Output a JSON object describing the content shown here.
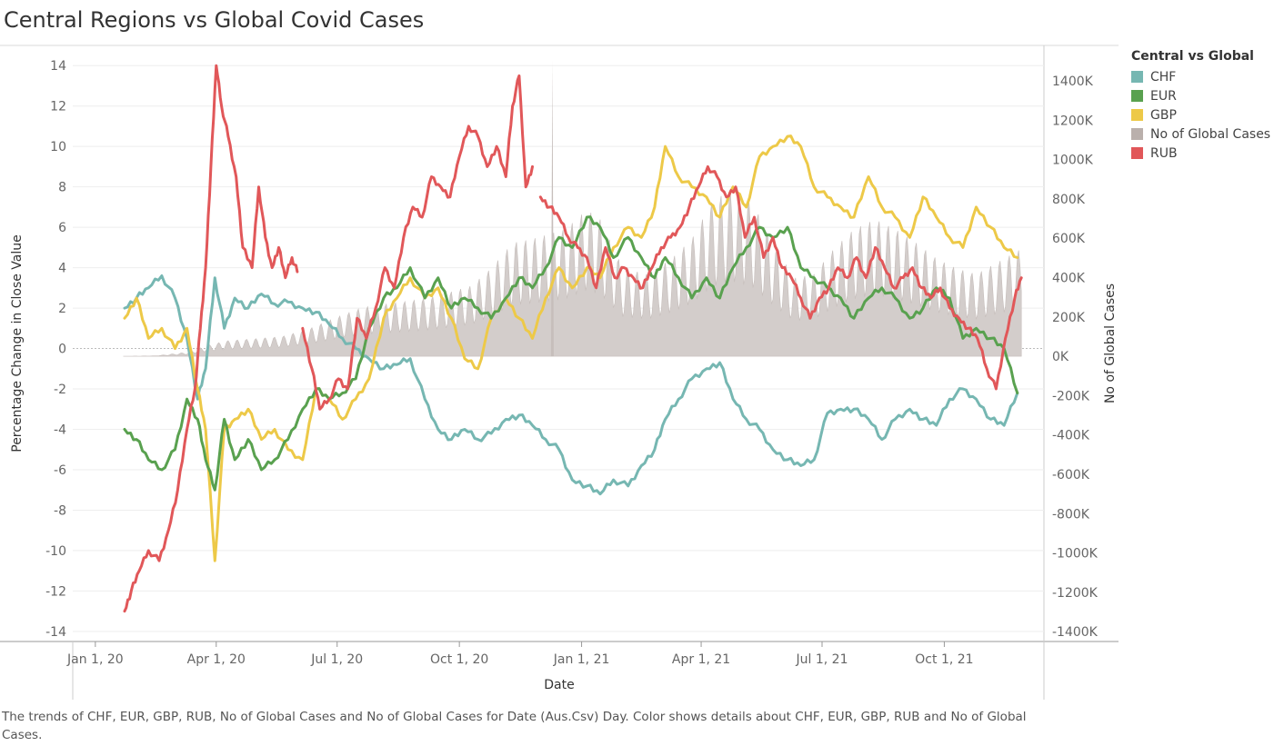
{
  "title": "Central Regions vs Global Covid Cases",
  "legend": {
    "title": "Central vs Global",
    "items": [
      {
        "label": "CHF",
        "color": "#76B7B2"
      },
      {
        "label": "EUR",
        "color": "#59A14F"
      },
      {
        "label": "GBP",
        "color": "#EDC948"
      },
      {
        "label": "No of Global Cases",
        "color": "#BAB0AC"
      },
      {
        "label": "RUB",
        "color": "#E15759"
      }
    ]
  },
  "caption": "The trends of CHF, EUR, GBP, RUB, No of Global Cases and No of Global Cases for Date (Aus.Csv) Day.  Color shows details about CHF, EUR, GBP, RUB and No of Global Cases.",
  "chart_data": {
    "type": "line",
    "xlabel": "Date",
    "ylabel": "Percentage Change in Close Value",
    "y2label": "No of Global Cases",
    "ylim": [
      -14.5,
      15
    ],
    "y2lim": [
      -1450000,
      1580000
    ],
    "yticks": [
      "14",
      "12",
      "10",
      "8",
      "6",
      "4",
      "2",
      "0",
      "-2",
      "-4",
      "-6",
      "-8",
      "-10",
      "-12",
      "-14"
    ],
    "y2ticks": [
      "1400K",
      "1200K",
      "1000K",
      "800K",
      "600K",
      "400K",
      "200K",
      "0K",
      "-200K",
      "-400K",
      "-600K",
      "-800K",
      "-1000K",
      "-1200K",
      "-1400K"
    ],
    "xticks": [
      "Jan 1, 20",
      "Apr 1, 20",
      "Jul 1, 20",
      "Oct 1, 20",
      "Jan 1, 21",
      "Apr 1, 21",
      "Jul 1, 21",
      "Oct 1, 21"
    ],
    "xlim": [
      "2019-12-15",
      "2021-12-15"
    ],
    "grid": true,
    "legend_position": "right",
    "series": [
      {
        "name": "CHF",
        "color": "#76B7B2",
        "dates": [
          "2020-01-23",
          "2020-02-01",
          "2020-02-10",
          "2020-02-20",
          "2020-03-01",
          "2020-03-10",
          "2020-03-18",
          "2020-03-24",
          "2020-03-31",
          "2020-04-07",
          "2020-04-15",
          "2020-04-25",
          "2020-05-05",
          "2020-05-15",
          "2020-05-25",
          "2020-06-05",
          "2020-06-15",
          "2020-06-25",
          "2020-07-05",
          "2020-07-15",
          "2020-07-25",
          "2020-08-05",
          "2020-08-15",
          "2020-08-25",
          "2020-09-05",
          "2020-09-15",
          "2020-09-25",
          "2020-10-05",
          "2020-10-15",
          "2020-10-25",
          "2020-11-05",
          "2020-11-15",
          "2020-11-25",
          "2020-12-05",
          "2020-12-15",
          "2020-12-25",
          "2021-01-05",
          "2021-01-15",
          "2021-01-25",
          "2021-02-05",
          "2021-02-15",
          "2021-02-25",
          "2021-03-05",
          "2021-03-15",
          "2021-03-25",
          "2021-04-05",
          "2021-04-15",
          "2021-04-25",
          "2021-05-05",
          "2021-05-15",
          "2021-05-25",
          "2021-06-05",
          "2021-06-15",
          "2021-06-25",
          "2021-07-05",
          "2021-07-15",
          "2021-07-25",
          "2021-08-05",
          "2021-08-15",
          "2021-08-25",
          "2021-09-05",
          "2021-09-15",
          "2021-09-25",
          "2021-10-05",
          "2021-10-15",
          "2021-10-25",
          "2021-11-05",
          "2021-11-15",
          "2021-11-25"
        ],
        "values": [
          2.0,
          2.5,
          3.0,
          3.6,
          2.5,
          0.5,
          -2.5,
          -1.0,
          3.5,
          1.0,
          2.5,
          2.0,
          2.7,
          2.2,
          2.3,
          2.0,
          1.8,
          1.2,
          0.5,
          0.0,
          -0.5,
          -1.0,
          -0.8,
          -0.5,
          -2.5,
          -4.0,
          -4.5,
          -4.0,
          -4.5,
          -4.2,
          -3.5,
          -3.3,
          -3.8,
          -4.5,
          -5.0,
          -6.5,
          -6.8,
          -7.2,
          -6.5,
          -6.8,
          -5.8,
          -5.0,
          -3.5,
          -2.5,
          -1.5,
          -1.0,
          -0.7,
          -2.5,
          -3.5,
          -4.0,
          -5.0,
          -5.5,
          -5.8,
          -5.5,
          -3.2,
          -3.0,
          -3.0,
          -3.5,
          -4.5,
          -3.5,
          -3.0,
          -3.5,
          -3.8,
          -2.5,
          -2.0,
          -2.5,
          -3.5,
          -3.8,
          -2.2
        ]
      },
      {
        "name": "EUR",
        "color": "#59A14F",
        "dates": [
          "2020-01-23",
          "2020-02-01",
          "2020-02-10",
          "2020-02-20",
          "2020-03-01",
          "2020-03-10",
          "2020-03-18",
          "2020-03-24",
          "2020-03-31",
          "2020-04-07",
          "2020-04-15",
          "2020-04-25",
          "2020-05-05",
          "2020-05-15",
          "2020-05-25",
          "2020-06-05",
          "2020-06-15",
          "2020-06-25",
          "2020-07-05",
          "2020-07-15",
          "2020-07-25",
          "2020-08-05",
          "2020-08-15",
          "2020-08-25",
          "2020-09-05",
          "2020-09-15",
          "2020-09-25",
          "2020-10-05",
          "2020-10-15",
          "2020-10-25",
          "2020-11-05",
          "2020-11-15",
          "2020-11-25",
          "2020-12-05",
          "2020-12-15",
          "2020-12-25",
          "2021-01-05",
          "2021-01-15",
          "2021-01-25",
          "2021-02-05",
          "2021-02-15",
          "2021-02-25",
          "2021-03-05",
          "2021-03-15",
          "2021-03-25",
          "2021-04-05",
          "2021-04-15",
          "2021-04-25",
          "2021-05-05",
          "2021-05-15",
          "2021-05-25",
          "2021-06-05",
          "2021-06-15",
          "2021-06-25",
          "2021-07-05",
          "2021-07-15",
          "2021-07-25",
          "2021-08-05",
          "2021-08-15",
          "2021-08-25",
          "2021-09-05",
          "2021-09-15",
          "2021-09-25",
          "2021-10-05",
          "2021-10-15",
          "2021-10-25",
          "2021-11-05",
          "2021-11-15",
          "2021-11-25"
        ],
        "values": [
          -4.0,
          -4.5,
          -5.5,
          -6.0,
          -5.0,
          -2.5,
          -3.5,
          -5.5,
          -7.0,
          -3.5,
          -5.5,
          -4.5,
          -6.0,
          -5.5,
          -4.5,
          -3.0,
          -2.0,
          -2.5,
          -2.2,
          -1.5,
          1.0,
          2.5,
          3.0,
          4.0,
          2.5,
          3.5,
          2.0,
          2.5,
          2.0,
          1.5,
          2.5,
          3.5,
          3.0,
          4.0,
          5.5,
          5.0,
          6.5,
          6.0,
          4.5,
          5.5,
          4.5,
          3.5,
          4.5,
          3.5,
          2.5,
          3.5,
          2.5,
          4.0,
          5.0,
          6.0,
          5.5,
          6.0,
          4.0,
          3.5,
          3.0,
          2.5,
          1.5,
          2.5,
          3.0,
          2.5,
          1.5,
          2.0,
          3.0,
          2.5,
          0.5,
          1.0,
          0.5,
          0.0,
          -2.2
        ]
      },
      {
        "name": "GBP",
        "color": "#EDC948",
        "dates": [
          "2020-01-23",
          "2020-02-01",
          "2020-02-10",
          "2020-02-20",
          "2020-03-01",
          "2020-03-10",
          "2020-03-18",
          "2020-03-24",
          "2020-03-31",
          "2020-04-07",
          "2020-04-15",
          "2020-04-25",
          "2020-05-05",
          "2020-05-15",
          "2020-05-25",
          "2020-06-05",
          "2020-06-15",
          "2020-06-25",
          "2020-07-05",
          "2020-07-15",
          "2020-07-25",
          "2020-08-05",
          "2020-08-15",
          "2020-08-25",
          "2020-09-05",
          "2020-09-15",
          "2020-09-25",
          "2020-10-05",
          "2020-10-15",
          "2020-10-25",
          "2020-11-05",
          "2020-11-15",
          "2020-11-25",
          "2020-12-05",
          "2020-12-15",
          "2020-12-25",
          "2021-01-05",
          "2021-01-15",
          "2021-01-25",
          "2021-02-05",
          "2021-02-15",
          "2021-02-25",
          "2021-03-05",
          "2021-03-15",
          "2021-03-25",
          "2021-04-05",
          "2021-04-15",
          "2021-04-25",
          "2021-05-05",
          "2021-05-15",
          "2021-05-25",
          "2021-06-05",
          "2021-06-15",
          "2021-06-25",
          "2021-07-05",
          "2021-07-15",
          "2021-07-25",
          "2021-08-05",
          "2021-08-15",
          "2021-08-25",
          "2021-09-05",
          "2021-09-15",
          "2021-09-25",
          "2021-10-05",
          "2021-10-15",
          "2021-10-25",
          "2021-11-05",
          "2021-11-15",
          "2021-11-25"
        ],
        "values": [
          1.5,
          2.5,
          0.5,
          1.0,
          0.0,
          1.0,
          -2.0,
          -4.0,
          -10.5,
          -4.0,
          -3.5,
          -3.0,
          -4.5,
          -4.0,
          -5.0,
          -5.5,
          -2.0,
          -2.5,
          -3.5,
          -2.5,
          -1.5,
          1.5,
          2.5,
          3.5,
          2.5,
          3.0,
          1.5,
          -0.5,
          -1.0,
          1.5,
          2.5,
          1.5,
          0.5,
          2.5,
          4.0,
          3.0,
          4.0,
          3.5,
          5.0,
          6.0,
          5.5,
          7.0,
          10.0,
          8.5,
          8.0,
          7.5,
          6.5,
          8.0,
          7.0,
          9.5,
          10.0,
          10.5,
          10.0,
          8.0,
          7.5,
          7.0,
          6.5,
          8.5,
          7.0,
          6.5,
          5.5,
          7.5,
          6.5,
          5.5,
          5.0,
          7.0,
          6.0,
          5.0,
          4.5
        ]
      },
      {
        "name": "RUB",
        "color": "#E15759",
        "segments": [
          {
            "dates": [
              "2020-01-23",
              "2020-01-28",
              "2020-02-03",
              "2020-02-10",
              "2020-02-18",
              "2020-02-25",
              "2020-03-03",
              "2020-03-10",
              "2020-03-16",
              "2020-03-20",
              "2020-03-24",
              "2020-03-28",
              "2020-04-01",
              "2020-04-05",
              "2020-04-10",
              "2020-04-16",
              "2020-04-21",
              "2020-04-28",
              "2020-05-03",
              "2020-05-08",
              "2020-05-13",
              "2020-05-18",
              "2020-05-23",
              "2020-05-28",
              "2020-06-01"
            ],
            "values": [
              -13.0,
              -12.0,
              -11.0,
              -10.0,
              -10.5,
              -9.0,
              -7.0,
              -4.0,
              -2.0,
              1.0,
              4.0,
              9.0,
              14.0,
              12.0,
              10.5,
              8.5,
              5.0,
              4.0,
              8.0,
              5.5,
              4.0,
              5.0,
              3.5,
              4.5,
              3.8
            ]
          },
          {
            "dates": [
              "2020-06-05",
              "2020-06-12",
              "2020-06-18",
              "2020-06-25",
              "2020-07-02",
              "2020-07-09",
              "2020-07-16",
              "2020-07-23",
              "2020-07-30",
              "2020-08-06",
              "2020-08-13",
              "2020-08-20",
              "2020-08-27",
              "2020-09-03",
              "2020-09-10",
              "2020-09-17",
              "2020-09-24",
              "2020-10-01",
              "2020-10-08",
              "2020-10-15",
              "2020-10-22",
              "2020-10-29",
              "2020-11-05",
              "2020-11-10",
              "2020-11-15",
              "2020-11-20",
              "2020-11-25"
            ],
            "values": [
              1.0,
              -1.0,
              -3.0,
              -2.5,
              -1.5,
              -2.0,
              1.5,
              0.5,
              2.0,
              4.0,
              3.0,
              5.5,
              7.0,
              6.5,
              8.5,
              8.0,
              7.5,
              9.5,
              11.0,
              10.5,
              9.0,
              10.0,
              8.5,
              12.0,
              13.5,
              8.0,
              9.0
            ]
          },
          {
            "dates": [
              "2020-12-01",
              "2020-12-08",
              "2020-12-15",
              "2020-12-22",
              "2020-12-29",
              "2021-01-05",
              "2021-01-12",
              "2021-01-19",
              "2021-01-26",
              "2021-02-02",
              "2021-02-09",
              "2021-02-16",
              "2021-02-23",
              "2021-03-02",
              "2021-03-09",
              "2021-03-16",
              "2021-03-23",
              "2021-03-30",
              "2021-04-06",
              "2021-04-13",
              "2021-04-20",
              "2021-04-27",
              "2021-05-04",
              "2021-05-11",
              "2021-05-18",
              "2021-05-25",
              "2021-06-01",
              "2021-06-08",
              "2021-06-15",
              "2021-06-22",
              "2021-06-29",
              "2021-07-06",
              "2021-07-13",
              "2021-07-20",
              "2021-07-27",
              "2021-08-03",
              "2021-08-10",
              "2021-08-17",
              "2021-08-24",
              "2021-08-31",
              "2021-09-07",
              "2021-09-14",
              "2021-09-21",
              "2021-09-28",
              "2021-10-05",
              "2021-10-12",
              "2021-10-19",
              "2021-10-26",
              "2021-11-02",
              "2021-11-09",
              "2021-11-16",
              "2021-11-23",
              "2021-11-28"
            ],
            "values": [
              7.5,
              7.0,
              6.5,
              5.5,
              5.0,
              4.5,
              3.0,
              5.0,
              3.5,
              4.0,
              3.5,
              3.0,
              4.0,
              5.0,
              5.5,
              6.0,
              7.0,
              8.0,
              9.0,
              8.5,
              7.5,
              8.0,
              5.5,
              6.5,
              4.5,
              5.5,
              4.0,
              3.5,
              2.5,
              1.5,
              2.5,
              3.0,
              4.0,
              3.5,
              4.5,
              3.5,
              5.0,
              4.0,
              3.0,
              3.5,
              4.0,
              3.0,
              2.5,
              3.0,
              2.0,
              1.5,
              1.0,
              0.5,
              -1.0,
              -2.0,
              0.5,
              2.5,
              3.5
            ]
          }
        ]
      },
      {
        "name": "No of Global Cases",
        "color": "#BAB0AC",
        "type": "area",
        "axis": "right",
        "dates": [
          "2020-01-22",
          "2020-02-15",
          "2020-03-10",
          "2020-03-25",
          "2020-04-10",
          "2020-05-01",
          "2020-05-20",
          "2020-06-10",
          "2020-07-01",
          "2020-07-20",
          "2020-08-10",
          "2020-09-01",
          "2020-09-20",
          "2020-10-10",
          "2020-10-25",
          "2020-11-10",
          "2020-11-25",
          "2020-12-10",
          "2020-12-20",
          "2021-01-05",
          "2021-01-15",
          "2021-02-01",
          "2021-02-20",
          "2021-03-10",
          "2021-03-25",
          "2021-04-10",
          "2021-04-25",
          "2021-05-10",
          "2021-05-25",
          "2021-06-10",
          "2021-06-25",
          "2021-07-10",
          "2021-07-25",
          "2021-08-10",
          "2021-08-25",
          "2021-09-10",
          "2021-09-25",
          "2021-10-10",
          "2021-10-25",
          "2021-11-10",
          "2021-11-28"
        ],
        "values": [
          0,
          2000,
          20000,
          55000,
          80000,
          90000,
          100000,
          140000,
          200000,
          250000,
          270000,
          290000,
          320000,
          360000,
          450000,
          580000,
          600000,
          630000,
          650000,
          750000,
          700000,
          450000,
          420000,
          500000,
          600000,
          800000,
          850000,
          780000,
          580000,
          400000,
          420000,
          550000,
          650000,
          700000,
          650000,
          580000,
          500000,
          450000,
          420000,
          480000,
          550000
        ],
        "spike": {
          "date": "2020-12-10",
          "value": 1500000
        }
      }
    ]
  }
}
